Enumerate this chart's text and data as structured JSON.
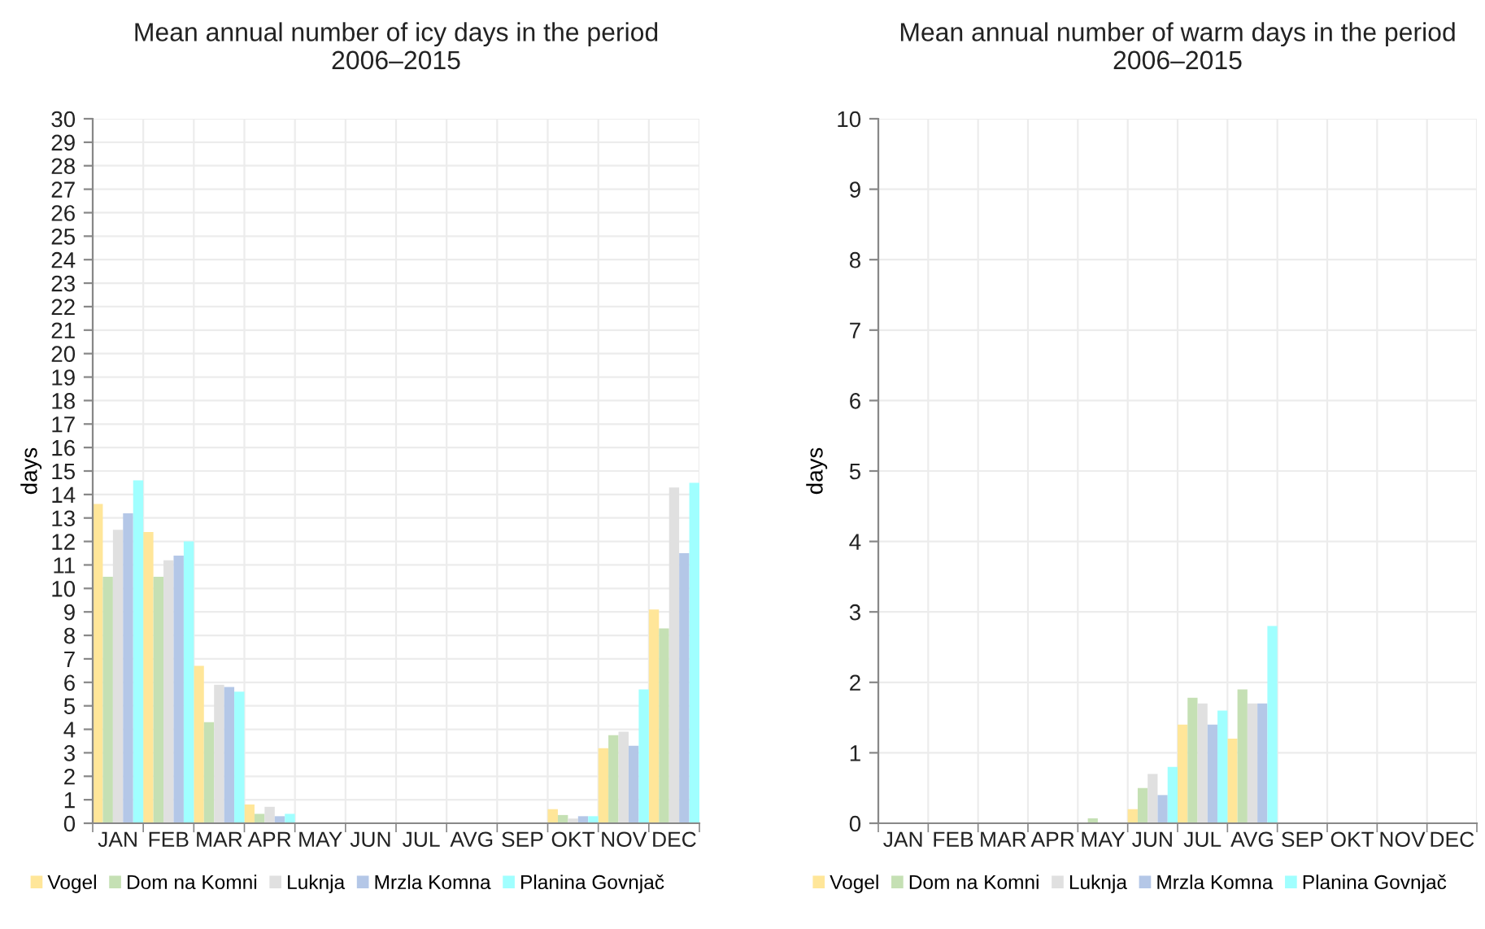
{
  "chart_data": [
    {
      "type": "bar",
      "title": "Mean annual number of icy days in the period\n2006–2015",
      "ylabel": "days",
      "categories": [
        "JAN",
        "FEB",
        "MAR",
        "APR",
        "MAY",
        "JUN",
        "JUL",
        "AVG",
        "SEP",
        "OKT",
        "NOV",
        "DEC"
      ],
      "series": [
        {
          "name": "Vogel",
          "color": "#ffe699",
          "values": [
            13.6,
            12.4,
            6.7,
            0.8,
            0,
            0,
            0,
            0,
            0,
            0.6,
            3.2,
            9.1
          ]
        },
        {
          "name": "Dom na Komni",
          "color": "#c5e0b4",
          "values": [
            10.5,
            10.5,
            4.3,
            0.4,
            0,
            0,
            0,
            0,
            0,
            0.35,
            3.75,
            8.3
          ]
        },
        {
          "name": "Luknja",
          "color": "#e0e0e0",
          "values": [
            12.5,
            11.2,
            5.9,
            0.7,
            0,
            0,
            0,
            0,
            0,
            0.2,
            3.9,
            14.3
          ]
        },
        {
          "name": "Mrzla Komna",
          "color": "#b4c7e7",
          "values": [
            13.2,
            11.4,
            5.8,
            0.3,
            0,
            0,
            0,
            0,
            0,
            0.3,
            3.3,
            11.5
          ]
        },
        {
          "name": "Planina Govnjač",
          "color": "#a0ffff",
          "values": [
            14.6,
            12.0,
            5.6,
            0.4,
            0,
            0,
            0,
            0,
            0,
            0.3,
            5.7,
            14.5
          ]
        }
      ],
      "ylim": [
        0,
        30
      ],
      "yticks": [
        0,
        1,
        2,
        3,
        4,
        5,
        6,
        7,
        8,
        9,
        10,
        11,
        12,
        13,
        14,
        15,
        16,
        17,
        18,
        19,
        20,
        21,
        22,
        23,
        24,
        25,
        26,
        27,
        28,
        29,
        30
      ],
      "grid": true,
      "legend": "bottom"
    },
    {
      "type": "bar",
      "title": "Mean annual number of warm days in the period\n2006–2015",
      "ylabel": "days",
      "categories": [
        "JAN",
        "FEB",
        "MAR",
        "APR",
        "MAY",
        "JUN",
        "JUL",
        "AVG",
        "SEP",
        "OKT",
        "NOV",
        "DEC"
      ],
      "series": [
        {
          "name": "Vogel",
          "color": "#ffe699",
          "values": [
            0,
            0,
            0,
            0,
            0,
            0.2,
            1.4,
            1.2,
            0,
            0,
            0,
            0
          ]
        },
        {
          "name": "Dom na Komni",
          "color": "#c5e0b4",
          "values": [
            0,
            0,
            0,
            0,
            0.07,
            0.5,
            1.78,
            1.9,
            0,
            0,
            0,
            0
          ]
        },
        {
          "name": "Luknja",
          "color": "#e0e0e0",
          "values": [
            0,
            0,
            0,
            0,
            0,
            0.7,
            1.7,
            1.7,
            0,
            0,
            0,
            0
          ]
        },
        {
          "name": "Mrzla Komna",
          "color": "#b4c7e7",
          "values": [
            0,
            0,
            0,
            0,
            0,
            0.4,
            1.4,
            1.7,
            0,
            0,
            0,
            0
          ]
        },
        {
          "name": "Planina Govnjač",
          "color": "#a0ffff",
          "values": [
            0,
            0,
            0,
            0,
            0,
            0.8,
            1.6,
            2.8,
            0,
            0,
            0,
            0
          ]
        }
      ],
      "ylim": [
        0,
        10
      ],
      "yticks": [
        0,
        1,
        2,
        3,
        4,
        5,
        6,
        7,
        8,
        9,
        10
      ],
      "grid": true,
      "legend": "bottom"
    }
  ]
}
